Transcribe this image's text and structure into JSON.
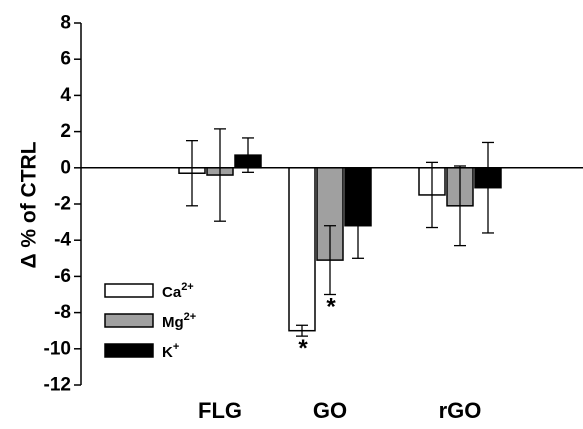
{
  "chart_data": {
    "type": "bar",
    "title": "",
    "xlabel": "",
    "ylabel": "Δ % of CTRL",
    "categories": [
      "FLG",
      "GO",
      "rGO"
    ],
    "ylim": [
      -12,
      8
    ],
    "yticks": [
      8,
      6,
      4,
      2,
      0,
      -2,
      -4,
      -6,
      -8,
      -10,
      -12
    ],
    "series": [
      {
        "name": "Ca",
        "sup": "2+",
        "color": "#ffffff",
        "values": [
          -0.3,
          -9.0,
          -1.5
        ],
        "errors": [
          1.8,
          0.3,
          1.8
        ]
      },
      {
        "name": "Mg",
        "sup": "2+",
        "color": "#a0a0a0",
        "values": [
          -0.4,
          -5.1,
          -2.1
        ],
        "errors": [
          2.55,
          1.9,
          2.2
        ]
      },
      {
        "name": "K",
        "sup": "+",
        "color": "#000000",
        "values": [
          0.7,
          -3.2,
          -1.1
        ],
        "errors": [
          0.95,
          1.8,
          2.5
        ]
      }
    ],
    "annotations": [
      {
        "text": "*",
        "category": 1,
        "series": 0
      },
      {
        "text": "*",
        "category": 1,
        "series": 1
      }
    ],
    "legend": "bottom-left",
    "grid": false
  }
}
